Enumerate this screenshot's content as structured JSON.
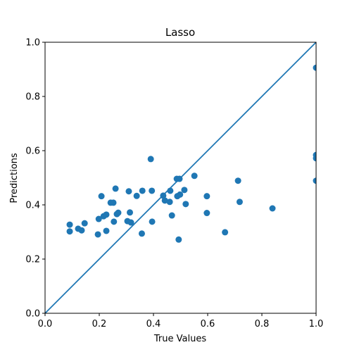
{
  "chart_data": {
    "type": "scatter",
    "title": "Lasso",
    "xlabel": "True Values",
    "ylabel": "Predictions",
    "xlim": [
      0.0,
      1.0
    ],
    "ylim": [
      0.0,
      1.0
    ],
    "xticks": [
      "0.0",
      "0.2",
      "0.4",
      "0.6",
      "0.8",
      "1.0"
    ],
    "yticks": [
      "0.0",
      "0.2",
      "0.4",
      "0.6",
      "0.8",
      "1.0"
    ],
    "grid": false,
    "point_color": "#1f77b4",
    "line_color": "#1f77b4",
    "reference_line": [
      [
        0.0,
        0.0
      ],
      [
        1.0,
        1.0
      ]
    ],
    "points": [
      [
        0.091,
        0.327
      ],
      [
        0.091,
        0.302
      ],
      [
        0.122,
        0.312
      ],
      [
        0.135,
        0.306
      ],
      [
        0.146,
        0.332
      ],
      [
        0.195,
        0.291
      ],
      [
        0.198,
        0.348
      ],
      [
        0.208,
        0.432
      ],
      [
        0.216,
        0.358
      ],
      [
        0.226,
        0.364
      ],
      [
        0.226,
        0.304
      ],
      [
        0.242,
        0.408
      ],
      [
        0.252,
        0.408
      ],
      [
        0.254,
        0.338
      ],
      [
        0.26,
        0.46
      ],
      [
        0.265,
        0.366
      ],
      [
        0.27,
        0.371
      ],
      [
        0.304,
        0.34
      ],
      [
        0.309,
        0.45
      ],
      [
        0.313,
        0.372
      ],
      [
        0.317,
        0.335
      ],
      [
        0.338,
        0.433
      ],
      [
        0.357,
        0.294
      ],
      [
        0.359,
        0.452
      ],
      [
        0.39,
        0.569
      ],
      [
        0.394,
        0.452
      ],
      [
        0.395,
        0.338
      ],
      [
        0.436,
        0.434
      ],
      [
        0.442,
        0.416
      ],
      [
        0.46,
        0.411
      ],
      [
        0.462,
        0.452
      ],
      [
        0.468,
        0.361
      ],
      [
        0.486,
        0.496
      ],
      [
        0.488,
        0.432
      ],
      [
        0.493,
        0.272
      ],
      [
        0.496,
        0.496
      ],
      [
        0.498,
        0.438
      ],
      [
        0.514,
        0.455
      ],
      [
        0.519,
        0.403
      ],
      [
        0.551,
        0.507
      ],
      [
        0.597,
        0.432
      ],
      [
        0.597,
        0.37
      ],
      [
        0.664,
        0.299
      ],
      [
        0.712,
        0.489
      ],
      [
        0.718,
        0.411
      ],
      [
        0.839,
        0.387
      ],
      [
        1.0,
        0.906
      ],
      [
        1.0,
        0.584
      ],
      [
        1.0,
        0.572
      ],
      [
        1.0,
        0.489
      ]
    ]
  }
}
